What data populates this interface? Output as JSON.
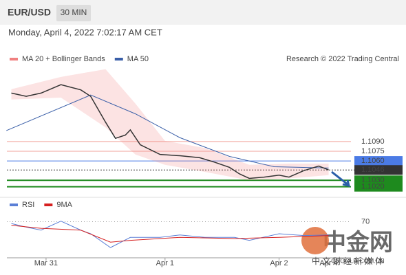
{
  "header": {
    "pair": "EUR/USD",
    "interval": "30 MIN",
    "timestamp": "Monday, April 4, 2022 7:02:17 AM CET",
    "credit": "Research © 2022 Trading Central"
  },
  "watermark": {
    "logo": "中金网",
    "site": "CNGOLD.COM.CN",
    "slogan": "中 文 财 经 新 媒 体"
  },
  "chart_data": [
    {
      "type": "line",
      "xlim": [
        -7.9,
        61.5
      ],
      "xticks": [
        {
          "value": 0,
          "label": "Mar 31"
        },
        {
          "value": 24,
          "label": "Apr 1"
        },
        {
          "value": 47,
          "label": "Apr 2"
        },
        {
          "value": 57,
          "label": "Apr 4"
        }
      ],
      "ylim": [
        1.1009,
        1.1208
      ],
      "levels": [
        {
          "value": 1.109,
          "label": "1.1090",
          "color": "#f2a39b"
        },
        {
          "value": 1.1075,
          "label": "1.1075",
          "color": "#f2a39b"
        },
        {
          "value": 1.106,
          "label": "1.1060",
          "color": "#4b7be5"
        },
        {
          "value": 1.1046,
          "label": "1.1046",
          "color": "#333333"
        },
        {
          "value": 1.103,
          "label": "1.1030",
          "color": "#1e8a1e"
        },
        {
          "value": 1.102,
          "label": "1.1020",
          "color": "#1e8a1e"
        }
      ],
      "series": [
        {
          "type": "band",
          "name": "MA 20 + Bollinger Bands",
          "color": "#f08080",
          "x": [
            -7,
            3,
            12,
            18,
            24,
            32,
            41,
            49,
            57
          ],
          "upper": [
            1.1171,
            1.119,
            1.1202,
            1.1149,
            1.1091,
            1.108,
            1.1054,
            1.1056,
            1.1056
          ],
          "lower": [
            1.1155,
            1.1158,
            1.1112,
            1.107,
            1.1054,
            1.1043,
            1.103,
            1.1033,
            1.1038
          ]
        },
        {
          "type": "line",
          "name": "MA 50",
          "color": "#3a5fa8",
          "x": [
            -8,
            9,
            18,
            27,
            37,
            46,
            57
          ],
          "values": [
            1.1107,
            1.1162,
            1.1133,
            1.1096,
            1.1067,
            1.1051,
            1.1049
          ]
        },
        {
          "type": "line",
          "color": "#333333",
          "x": [
            -7,
            -4,
            -1,
            3,
            7,
            9,
            12,
            14,
            16,
            17,
            19,
            23,
            27,
            31,
            34,
            37,
            39,
            41,
            44,
            47,
            49,
            52,
            55,
            57
          ],
          "values": [
            1.1165,
            1.116,
            1.1165,
            1.1178,
            1.117,
            1.116,
            1.112,
            1.1095,
            1.11,
            1.1108,
            1.1085,
            1.107,
            1.1068,
            1.1065,
            1.1058,
            1.105,
            1.104,
            1.1033,
            1.1035,
            1.1038,
            1.1035,
            1.1045,
            1.1052,
            1.1046
          ]
        }
      ]
    },
    {
      "type": "line",
      "xlim": [
        -7.9,
        61.5
      ],
      "ylim": [
        10,
        90
      ],
      "yticks": [
        70
      ],
      "series": [
        {
          "type": "line",
          "name": "RSI",
          "color": "#5b7fd6",
          "x": [
            -7,
            -4,
            -1,
            3,
            7,
            9,
            13,
            17,
            23,
            27,
            32,
            38,
            41,
            47,
            52,
            57
          ],
          "values": [
            67,
            61,
            56,
            71,
            56,
            50,
            27,
            44,
            44,
            48,
            44,
            44,
            39,
            50,
            47,
            48
          ]
        },
        {
          "type": "line",
          "name": "9MA",
          "color": "#d62020",
          "x": [
            -7,
            -1,
            7,
            13,
            17,
            27,
            38,
            47,
            57
          ],
          "values": [
            64,
            59,
            56,
            36,
            39,
            44,
            42,
            44,
            47
          ]
        }
      ]
    }
  ]
}
